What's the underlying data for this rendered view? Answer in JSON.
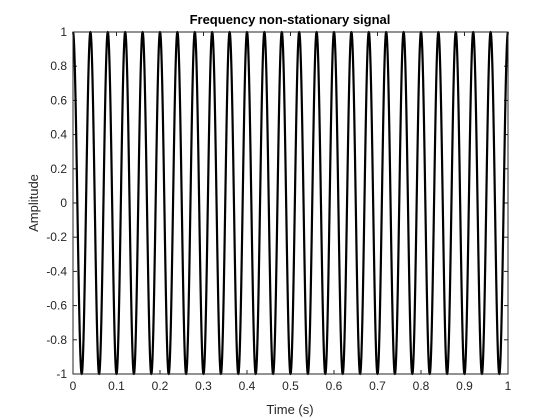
{
  "chart_data": {
    "type": "line",
    "title": "Frequency non-stationary signal",
    "xlabel": "Time (s)",
    "ylabel": "Amplitude",
    "xlim": [
      0,
      1
    ],
    "ylim": [
      -1,
      1
    ],
    "xticks": [
      0,
      0.1,
      0.2,
      0.3,
      0.4,
      0.5,
      0.6,
      0.7,
      0.8,
      0.9,
      1
    ],
    "xtick_labels": [
      "0",
      "0.1",
      "0.2",
      "0.3",
      "0.4",
      "0.5",
      "0.6",
      "0.7",
      "0.8",
      "0.9",
      "1"
    ],
    "yticks": [
      -1,
      -0.8,
      -0.6,
      -0.4,
      -0.2,
      0,
      0.2,
      0.4,
      0.6,
      0.8,
      1
    ],
    "ytick_labels": [
      "-1",
      "-0.8",
      "-0.6",
      "-0.4",
      "-0.2",
      "0",
      "0.2",
      "0.4",
      "0.6",
      "0.8",
      "1"
    ],
    "grid": false,
    "legend": false,
    "series": [
      {
        "color": "#000000",
        "function": "cos",
        "amplitude": 1,
        "frequency_hz": 25,
        "phase_rad": 0
      }
    ]
  },
  "colors": {
    "axis": "#262626",
    "line": "#000000",
    "background": "#ffffff"
  }
}
